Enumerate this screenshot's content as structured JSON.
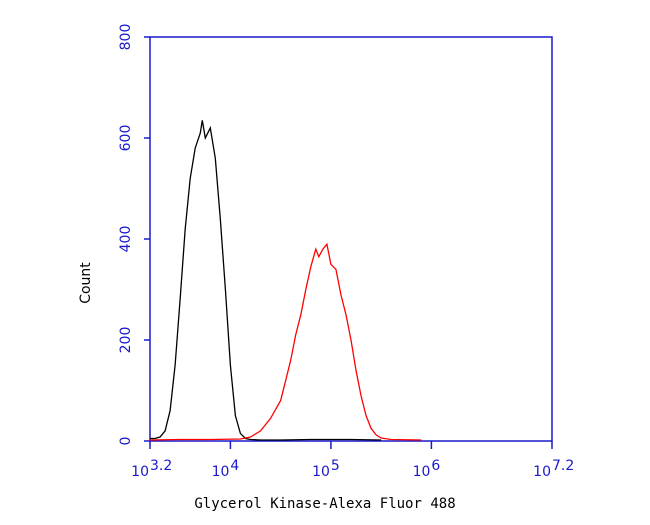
{
  "chart_data": {
    "type": "histogram_line",
    "xlabel": "Glycerol Kinase-Alexa Fluor 488",
    "ylabel": "Count",
    "log_x": true,
    "xtick_base": "10",
    "xlim": [
      3.2,
      7.2
    ],
    "xticks": [
      3.2,
      4,
      5,
      6,
      7.2
    ],
    "ylim": [
      0,
      800
    ],
    "yticks": [
      0,
      200,
      400,
      600,
      800
    ],
    "axis_color": "#1a1acc",
    "series": [
      {
        "color": "#000000",
        "x": [
          3.2,
          3.25,
          3.3,
          3.35,
          3.4,
          3.45,
          3.5,
          3.55,
          3.6,
          3.65,
          3.7,
          3.72,
          3.75,
          3.8,
          3.85,
          3.9,
          3.95,
          4.0,
          4.05,
          4.1,
          4.15,
          4.2,
          4.3,
          4.5,
          4.8,
          5.0,
          5.2,
          5.5
        ],
        "values": [
          5,
          5,
          8,
          20,
          60,
          150,
          280,
          420,
          520,
          580,
          610,
          635,
          600,
          620,
          560,
          440,
          300,
          150,
          50,
          15,
          5,
          3,
          2,
          2,
          3,
          3,
          3,
          2
        ]
      },
      {
        "color": "#ff0000",
        "x": [
          3.2,
          3.5,
          3.8,
          4.1,
          4.2,
          4.3,
          4.4,
          4.5,
          4.55,
          4.6,
          4.65,
          4.7,
          4.75,
          4.8,
          4.85,
          4.88,
          4.92,
          4.96,
          5.0,
          5.05,
          5.1,
          5.15,
          5.2,
          5.25,
          5.3,
          5.35,
          5.4,
          5.45,
          5.5,
          5.6,
          5.9
        ],
        "values": [
          2,
          3,
          3,
          4,
          8,
          20,
          45,
          80,
          120,
          160,
          210,
          250,
          300,
          345,
          380,
          365,
          380,
          390,
          350,
          340,
          290,
          250,
          200,
          140,
          90,
          50,
          25,
          12,
          6,
          3,
          2
        ]
      }
    ]
  }
}
